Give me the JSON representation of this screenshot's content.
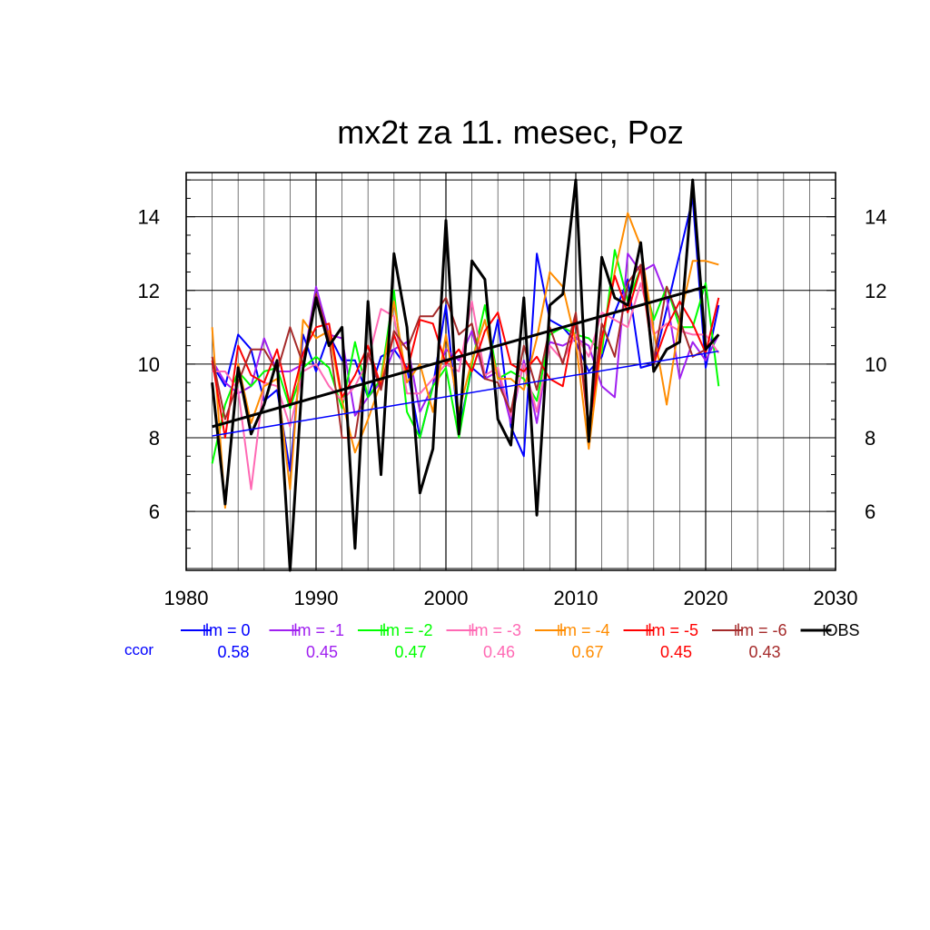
{
  "chart_data": {
    "type": "line",
    "title": "mx2t za 11. mesec, Poz",
    "xlim": [
      1980,
      2030
    ],
    "ylim": [
      4.4,
      15.2
    ],
    "x_ticks": [
      "1980",
      "1990",
      "2000",
      "2010",
      "2020",
      "2030"
    ],
    "y_ticks": [
      "6",
      "8",
      "10",
      "12",
      "14"
    ],
    "grid": true,
    "legend_position": "bottom",
    "ccor_label": "ccor",
    "x": [
      1982,
      1983,
      1984,
      1985,
      1986,
      1987,
      1988,
      1989,
      1990,
      1991,
      1992,
      1993,
      1994,
      1995,
      1996,
      1997,
      1998,
      1999,
      2000,
      2001,
      2002,
      2003,
      2004,
      2005,
      2006,
      2007,
      2008,
      2009,
      2010,
      2011,
      2012,
      2013,
      2014,
      2015,
      2016,
      2017,
      2018,
      2019,
      2020,
      2021
    ],
    "series": [
      {
        "name": "lm = 0",
        "color": "#0000ff",
        "width": 2,
        "ccor": "0.58",
        "values": [
          10.0,
          9.4,
          10.8,
          10.4,
          9.0,
          9.3,
          7.1,
          10.8,
          9.8,
          10.8,
          10.1,
          10.1,
          9.1,
          10.2,
          10.4,
          9.9,
          8.0,
          9.4,
          11.6,
          8.2,
          9.9,
          9.6,
          11.2,
          8.3,
          7.5,
          13.0,
          11.2,
          11.0,
          10.6,
          9.8,
          10.2,
          11.4,
          12.3,
          9.9,
          10.0,
          11.5,
          13.0,
          14.5,
          9.9,
          11.6
        ]
      },
      {
        "name": "lm = -1",
        "color": "#a020f0",
        "width": 2,
        "ccor": "0.45",
        "values": [
          10.1,
          9.5,
          9.2,
          9.4,
          10.7,
          9.8,
          9.8,
          10.0,
          12.1,
          10.8,
          10.7,
          8.6,
          9.1,
          9.5,
          10.4,
          10.6,
          8.7,
          9.4,
          10.4,
          10.1,
          10.9,
          9.6,
          9.8,
          8.4,
          10.1,
          8.4,
          10.6,
          10.5,
          10.7,
          10.5,
          9.4,
          9.1,
          13.0,
          12.5,
          12.7,
          11.8,
          9.6,
          10.6,
          10.1,
          10.8
        ]
      },
      {
        "name": "lm = -2",
        "color": "#00ff00",
        "width": 2,
        "ccor": "0.47",
        "values": [
          7.3,
          8.9,
          9.8,
          9.4,
          9.8,
          9.9,
          8.8,
          9.9,
          10.2,
          9.9,
          8.8,
          10.6,
          9.1,
          9.6,
          12.0,
          8.7,
          8.0,
          9.4,
          9.9,
          8.0,
          10.0,
          11.6,
          9.6,
          9.8,
          9.6,
          9.0,
          10.8,
          11.0,
          10.8,
          10.7,
          10.3,
          13.1,
          11.7,
          12.6,
          11.2,
          12.1,
          11.0,
          11.0,
          12.2,
          9.4
        ]
      },
      {
        "name": "lm = -3",
        "color": "#ff69b4",
        "width": 2,
        "ccor": "0.46",
        "values": [
          9.8,
          9.8,
          9.3,
          6.6,
          9.5,
          9.4,
          8.3,
          9.8,
          10.0,
          9.4,
          9.0,
          9.4,
          10.1,
          11.5,
          11.3,
          9.2,
          9.2,
          9.6,
          10.0,
          9.8,
          11.7,
          9.7,
          9.9,
          8.6,
          10.0,
          8.7,
          10.5,
          10.1,
          10.8,
          10.2,
          11.4,
          11.2,
          11.0,
          12.2,
          10.8,
          11.1,
          10.9,
          10.8,
          10.8,
          10.3
        ]
      },
      {
        "name": "lm = -4",
        "color": "#ff8c00",
        "width": 2,
        "ccor": "0.67",
        "values": [
          11.0,
          6.1,
          10.0,
          8.4,
          9.4,
          9.6,
          6.6,
          11.2,
          10.7,
          10.9,
          9.0,
          7.6,
          8.5,
          9.5,
          11.7,
          9.5,
          10.0,
          8.7,
          10.8,
          8.7,
          10.1,
          11.2,
          9.6,
          9.6,
          9.3,
          10.7,
          12.5,
          12.1,
          10.6,
          7.7,
          10.6,
          12.5,
          14.1,
          13.2,
          10.9,
          8.9,
          11.2,
          12.8,
          12.8,
          12.7
        ]
      },
      {
        "name": "lm = -5",
        "color": "#ff0000",
        "width": 2,
        "ccor": "0.45",
        "values": [
          10.1,
          8.0,
          10.5,
          9.7,
          9.5,
          10.4,
          8.9,
          10.3,
          11.0,
          11.1,
          9.1,
          9.7,
          10.5,
          9.4,
          10.8,
          9.8,
          11.2,
          11.1,
          10.0,
          10.4,
          9.8,
          10.9,
          11.4,
          10.0,
          9.8,
          10.2,
          9.6,
          9.4,
          11.3,
          8.2,
          10.7,
          12.4,
          11.4,
          12.6,
          10.0,
          11.0,
          11.7,
          11.1,
          10.3,
          11.8
        ]
      },
      {
        "name": "lm = -6",
        "color": "#a52a2a",
        "width": 2,
        "ccor": "0.43",
        "values": [
          10.2,
          8.5,
          9.5,
          10.4,
          10.4,
          9.8,
          11.0,
          10.0,
          11.9,
          10.7,
          8.0,
          8.0,
          10.3,
          9.3,
          10.9,
          10.4,
          11.3,
          11.3,
          11.8,
          10.8,
          11.1,
          9.6,
          9.5,
          8.7,
          10.5,
          9.3,
          11.0,
          10.0,
          11.4,
          8.3,
          11.1,
          10.2,
          12.2,
          12.7,
          10.1,
          12.1,
          11.2,
          10.2,
          10.4,
          10.8
        ]
      },
      {
        "name": "OBS",
        "color": "#000000",
        "width": 3,
        "ccor": "",
        "values": [
          9.5,
          6.2,
          9.9,
          8.1,
          8.9,
          10.1,
          4.4,
          9.9,
          11.8,
          10.5,
          11.0,
          5.0,
          11.7,
          7.0,
          13.0,
          11.0,
          6.5,
          7.7,
          13.9,
          8.1,
          12.8,
          12.3,
          8.5,
          7.8,
          11.8,
          5.9,
          11.6,
          11.9,
          15.0,
          7.9,
          12.9,
          11.8,
          11.6,
          13.3,
          9.8,
          10.4,
          10.6,
          15.0,
          10.4,
          10.8
        ]
      }
    ],
    "trend_lines": [
      {
        "color": "#0000ff",
        "width": 1.5,
        "x": [
          1982,
          2021
        ],
        "y": [
          8.05,
          10.35
        ]
      },
      {
        "color": "#000000",
        "width": 3,
        "x": [
          1982,
          2020
        ],
        "y": [
          8.3,
          12.1
        ]
      }
    ]
  }
}
